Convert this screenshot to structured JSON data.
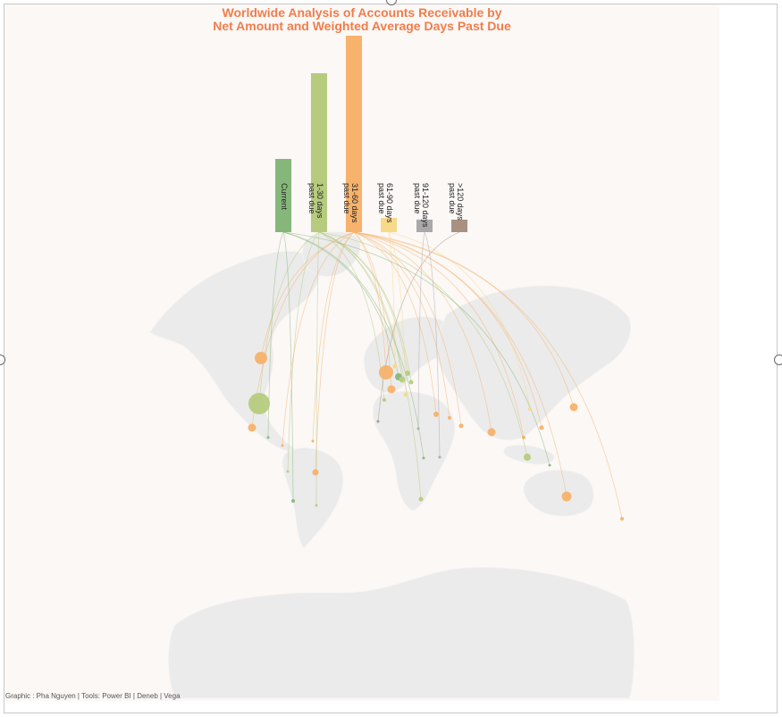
{
  "chart_data": {
    "type": "bar",
    "title_line1": "Worldwide Analysis of Accounts Receivable by",
    "title_line2": "Net Amount and Weighted Average Days Past Due",
    "footer": "Graphic : Pha Nguyen | Tools: Power BI | Deneb | Vega",
    "categories": [
      {
        "key": "current",
        "label1": "Current",
        "label2": "",
        "value": 82,
        "color": "#86b77a"
      },
      {
        "key": "d1_30",
        "label1": "1-30 days",
        "label2": "past due",
        "value": 178,
        "color": "#b7cb7f"
      },
      {
        "key": "d31_60",
        "label1": "31-60 days",
        "label2": "past due",
        "value": 220,
        "color": "#f7b26c"
      },
      {
        "key": "d61_90",
        "label1": "61-90 days",
        "label2": "past due",
        "value": 16,
        "color": "#f7d98a"
      },
      {
        "key": "d91_120",
        "label1": "91-120 days",
        "label2": "past due",
        "value": 14,
        "color": "#a9a9a9"
      },
      {
        "key": "d120p",
        "label1": ">120 days",
        "label2": "past due",
        "value": 14,
        "color": "#a99182"
      }
    ],
    "ylim": [
      0,
      220
    ],
    "legend": "none",
    "grid": false
  }
}
